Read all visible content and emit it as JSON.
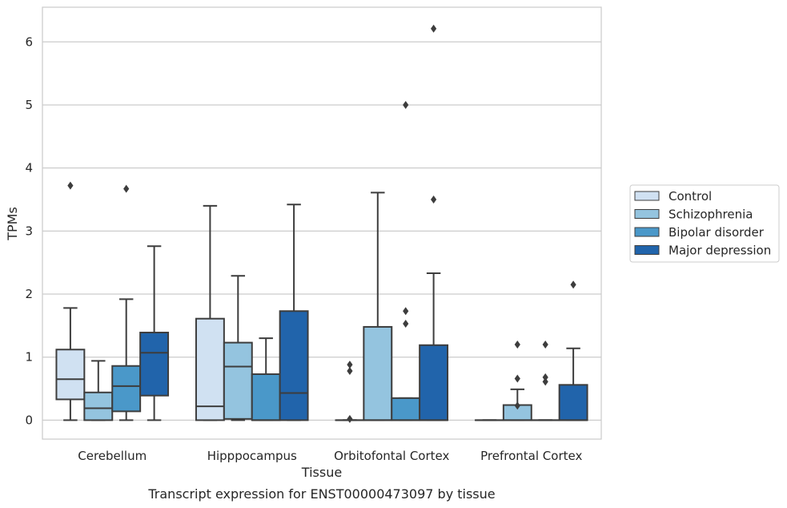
{
  "caption": "Transcript expression for ENST00000473097 by tissue",
  "chart_data": {
    "type": "box",
    "xlabel": "Tissue",
    "ylabel": "TPMs",
    "ylim": [
      -0.3,
      6.55
    ],
    "yticks": [
      0,
      1,
      2,
      3,
      4,
      5,
      6
    ],
    "grid": "horizontal",
    "legend_position": "right",
    "categories": [
      "Cerebellum",
      "Hipppocampus",
      "Orbitofontal Cortex",
      "Prefrontal Cortex"
    ],
    "series": [
      {
        "name": "Control",
        "color": "#d0e1f2",
        "boxes": [
          {
            "whislo": 0,
            "q1": 0.33,
            "med": 0.65,
            "q3": 1.12,
            "whishi": 1.78,
            "fliers": [
              3.72
            ]
          },
          {
            "whislo": 0,
            "q1": 0,
            "med": 0.22,
            "q3": 1.61,
            "whishi": 3.4,
            "fliers": []
          },
          {
            "whislo": 0,
            "q1": 0,
            "med": 0,
            "q3": 0,
            "whishi": 0,
            "fliers": [
              0.02,
              0.78,
              0.88
            ]
          },
          {
            "whislo": 0,
            "q1": 0,
            "med": 0,
            "q3": 0,
            "whishi": 0,
            "fliers": []
          }
        ]
      },
      {
        "name": "Schizophrenia",
        "color": "#94c4df",
        "boxes": [
          {
            "whislo": 0,
            "q1": 0,
            "med": 0.19,
            "q3": 0.44,
            "whishi": 0.94,
            "fliers": []
          },
          {
            "whislo": 0,
            "q1": 0.02,
            "med": 0.85,
            "q3": 1.23,
            "whishi": 2.29,
            "fliers": []
          },
          {
            "whislo": 0,
            "q1": 0,
            "med": 0,
            "q3": 1.48,
            "whishi": 3.61,
            "fliers": []
          },
          {
            "whislo": 0,
            "q1": 0,
            "med": 0,
            "q3": 0.24,
            "whishi": 0.49,
            "fliers": [
              0.23,
              0.66,
              1.2
            ]
          }
        ]
      },
      {
        "name": "Bipolar disorder",
        "color": "#4a98c9",
        "boxes": [
          {
            "whislo": 0,
            "q1": 0.14,
            "med": 0.54,
            "q3": 0.86,
            "whishi": 1.92,
            "fliers": [
              3.67
            ]
          },
          {
            "whislo": 0,
            "q1": 0,
            "med": 0,
            "q3": 0.73,
            "whishi": 1.3,
            "fliers": []
          },
          {
            "whislo": 0,
            "q1": 0,
            "med": 0,
            "q3": 0.35,
            "whishi": 0.35,
            "fliers": [
              1.53,
              1.73,
              5.0
            ]
          },
          {
            "whislo": 0,
            "q1": 0,
            "med": 0,
            "q3": 0,
            "whishi": 0,
            "fliers": [
              0.61,
              0.68,
              1.2
            ]
          }
        ]
      },
      {
        "name": "Major depression",
        "color": "#2164ab",
        "boxes": [
          {
            "whislo": 0,
            "q1": 0.39,
            "med": 1.07,
            "q3": 1.39,
            "whishi": 2.76,
            "fliers": []
          },
          {
            "whislo": 0,
            "q1": 0,
            "med": 0.43,
            "q3": 1.73,
            "whishi": 3.42,
            "fliers": []
          },
          {
            "whislo": 0,
            "q1": 0,
            "med": 0,
            "q3": 1.19,
            "whishi": 2.33,
            "fliers": [
              3.5,
              6.21
            ]
          },
          {
            "whislo": 0,
            "q1": 0,
            "med": 0,
            "q3": 0.56,
            "whishi": 1.14,
            "fliers": [
              2.15
            ]
          }
        ]
      }
    ]
  }
}
